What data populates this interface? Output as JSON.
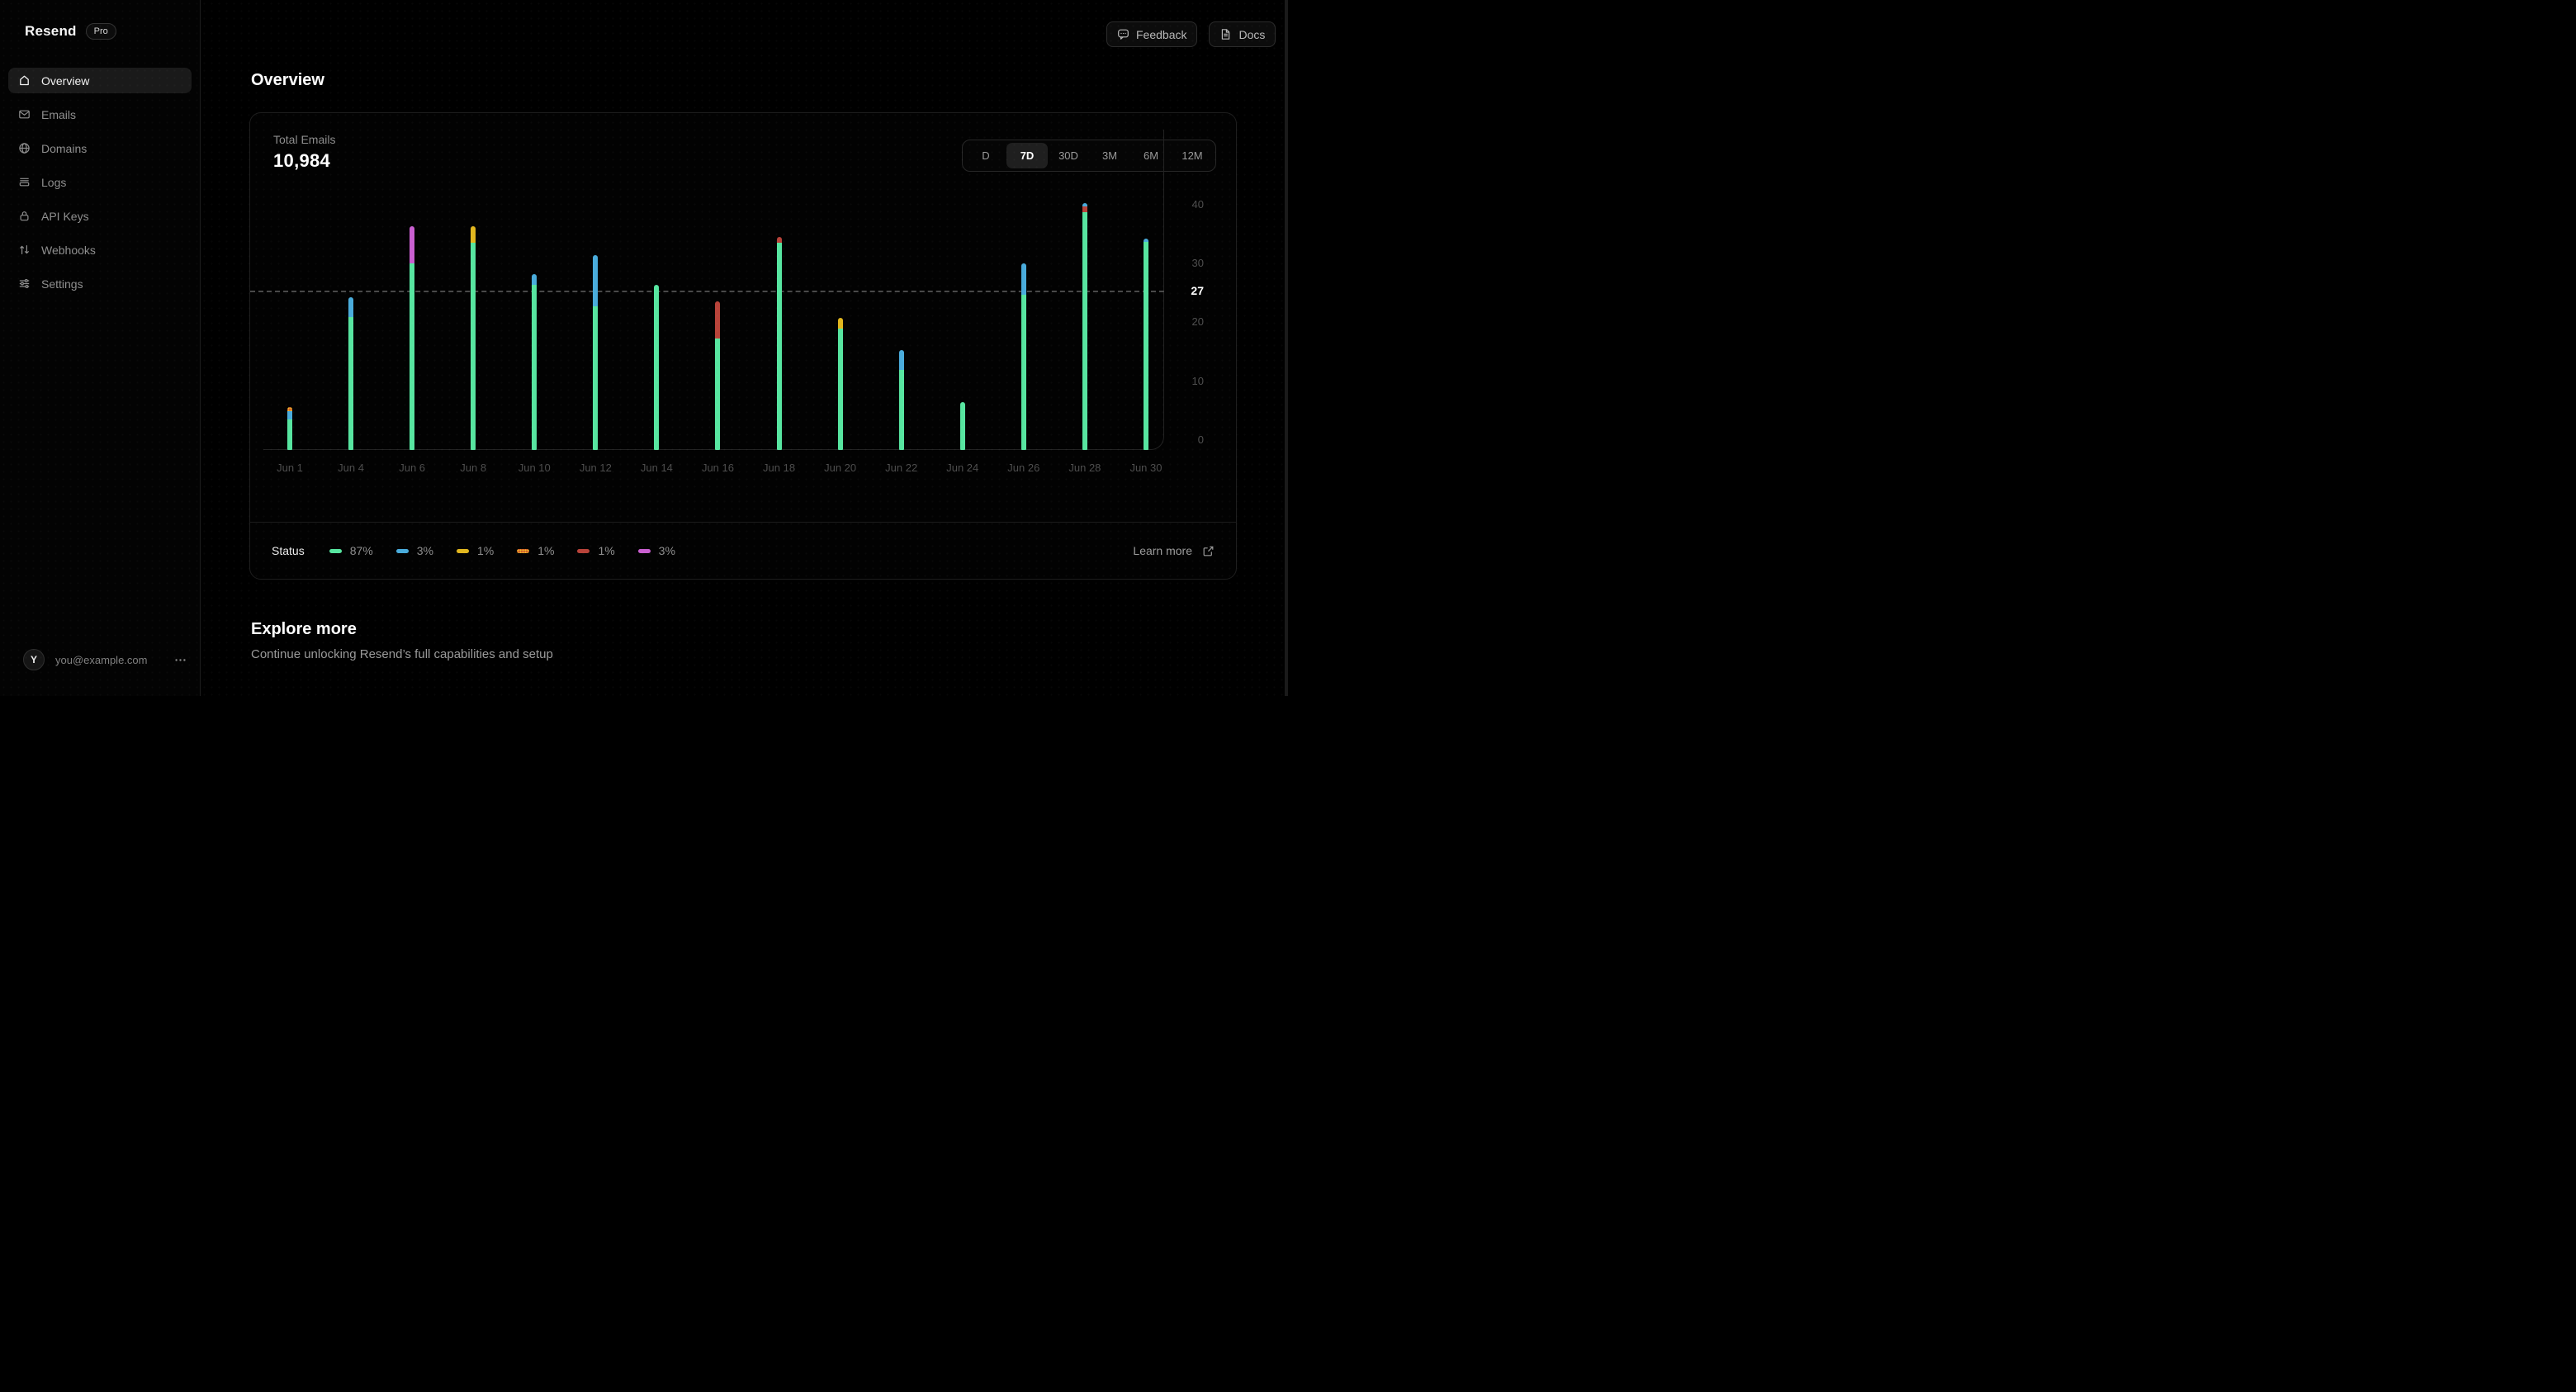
{
  "app": {
    "brand": "Resend",
    "badge": "Pro"
  },
  "header": {
    "feedback_label": "Feedback",
    "docs_label": "Docs"
  },
  "page": {
    "title": "Overview"
  },
  "sidebar": {
    "items": [
      {
        "label": "Overview",
        "icon": "home",
        "active": true
      },
      {
        "label": "Emails",
        "icon": "mail",
        "active": false
      },
      {
        "label": "Domains",
        "icon": "globe",
        "active": false
      },
      {
        "label": "Logs",
        "icon": "logs",
        "active": false
      },
      {
        "label": "API Keys",
        "icon": "lock",
        "active": false
      },
      {
        "label": "Webhooks",
        "icon": "arrows-up-down",
        "active": false
      },
      {
        "label": "Settings",
        "icon": "sliders",
        "active": false
      }
    ],
    "user": {
      "initial": "Y",
      "email": "you@example.com"
    }
  },
  "card": {
    "metric_label": "Total Emails",
    "metric_value": "10,984",
    "ranges": [
      "D",
      "7D",
      "30D",
      "3M",
      "6M",
      "12M"
    ],
    "active_range": "7D",
    "legend_label": "Status",
    "learn_more_label": "Learn more"
  },
  "chart_data": {
    "type": "bar",
    "stacked": true,
    "title": "Total Emails",
    "total_label": "10,984",
    "x_labels": [
      "Jun 1",
      "Jun 4",
      "Jun 6",
      "Jun 8",
      "Jun 10",
      "Jun 12",
      "Jun 14",
      "Jun 16",
      "Jun 18",
      "Jun 20",
      "Jun 22",
      "Jun 24",
      "Jun 26",
      "Jun 28",
      "Jun 30"
    ],
    "ylim": [
      0,
      44
    ],
    "yticks": [
      0,
      10,
      20,
      30,
      40
    ],
    "reference_line": 27,
    "grid": "off",
    "legend_position": "bottom",
    "colors": {
      "green": "#57e5a0",
      "blue": "#4aacdc",
      "yellow": "#e2b71f",
      "orange": "#d2622a",
      "red": "#b8433a",
      "magenta": "#c95fd0"
    },
    "legend": [
      {
        "key": "green",
        "percent": "87%"
      },
      {
        "key": "blue",
        "percent": "3%"
      },
      {
        "key": "yellow",
        "percent": "1%"
      },
      {
        "key": "orange",
        "percent": "1%",
        "pattern": "dotted"
      },
      {
        "key": "red",
        "percent": "1%"
      },
      {
        "key": "magenta",
        "percent": "3%"
      }
    ],
    "bars": [
      {
        "x": "Jun 1",
        "segments": [
          {
            "key": "green",
            "value": 5.2
          },
          {
            "key": "blue",
            "value": 1.4
          },
          {
            "key": "orange",
            "value": 0.7
          }
        ]
      },
      {
        "x": "Jun 4",
        "segments": [
          {
            "key": "green",
            "value": 22.5
          },
          {
            "key": "blue",
            "value": 3.4
          }
        ]
      },
      {
        "x": "Jun 6",
        "segments": [
          {
            "key": "green",
            "value": 31.5
          },
          {
            "key": "magenta",
            "value": 6.3
          }
        ]
      },
      {
        "x": "Jun 8",
        "segments": [
          {
            "key": "green",
            "value": 35
          },
          {
            "key": "yellow",
            "value": 2.8
          }
        ]
      },
      {
        "x": "Jun 10",
        "segments": [
          {
            "key": "green",
            "value": 27.9
          },
          {
            "key": "blue",
            "value": 1.9
          }
        ]
      },
      {
        "x": "Jun 12",
        "segments": [
          {
            "key": "green",
            "value": 24.3
          },
          {
            "key": "blue",
            "value": 8.7
          }
        ]
      },
      {
        "x": "Jun 14",
        "segments": [
          {
            "key": "green",
            "value": 27.9
          }
        ]
      },
      {
        "x": "Jun 16",
        "segments": [
          {
            "key": "green",
            "value": 18.9
          },
          {
            "key": "red",
            "value": 6.3
          }
        ]
      },
      {
        "x": "Jun 18",
        "segments": [
          {
            "key": "green",
            "value": 35
          },
          {
            "key": "red",
            "value": 1
          }
        ]
      },
      {
        "x": "Jun 20",
        "segments": [
          {
            "key": "green",
            "value": 20.6
          },
          {
            "key": "yellow",
            "value": 1.7
          }
        ]
      },
      {
        "x": "Jun 22",
        "segments": [
          {
            "key": "green",
            "value": 13.5
          },
          {
            "key": "blue",
            "value": 3.4
          }
        ]
      },
      {
        "x": "Jun 24",
        "segments": [
          {
            "key": "green",
            "value": 8.1
          }
        ]
      },
      {
        "x": "Jun 26",
        "segments": [
          {
            "key": "green",
            "value": 26.2
          },
          {
            "key": "blue",
            "value": 5.3
          }
        ]
      },
      {
        "x": "Jun 28",
        "segments": [
          {
            "key": "green",
            "value": 40.2
          },
          {
            "key": "red",
            "value": 1
          },
          {
            "key": "blue",
            "value": 0.5
          }
        ]
      },
      {
        "x": "Jun 30",
        "segments": [
          {
            "key": "green",
            "value": 35.2
          },
          {
            "key": "blue",
            "value": 0.6
          }
        ]
      }
    ]
  },
  "explore": {
    "title": "Explore more",
    "subtitle": "Continue unlocking Resend’s full capabilities and setup"
  }
}
